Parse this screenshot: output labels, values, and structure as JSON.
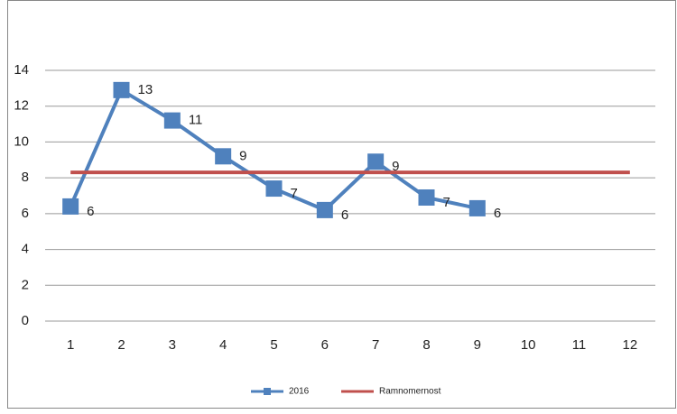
{
  "chart_data": {
    "type": "line",
    "categories": [
      "1",
      "2",
      "3",
      "4",
      "5",
      "6",
      "7",
      "8",
      "9",
      "10",
      "11",
      "12"
    ],
    "series": [
      {
        "name": "2016",
        "color": "#4f81bd",
        "marker": "square",
        "values": [
          6.4,
          12.9,
          11.2,
          9.2,
          7.4,
          6.2,
          8.9,
          6.9,
          6.3,
          null,
          null,
          null
        ],
        "value_labels": [
          "6",
          "13",
          "11",
          "9",
          "7",
          "6",
          "9",
          "7",
          "6",
          null,
          null,
          null
        ]
      },
      {
        "name": "Ramnomernost",
        "color": "#c0504d",
        "values": [
          8.3,
          8.3,
          8.3,
          8.3,
          8.3,
          8.3,
          8.3,
          8.3,
          8.3,
          8.3,
          8.3,
          8.3
        ]
      }
    ],
    "ylim": [
      0,
      14
    ],
    "yticks": [
      0,
      2,
      4,
      6,
      8,
      10,
      12,
      14
    ],
    "grid": true,
    "legend": "bottom"
  }
}
